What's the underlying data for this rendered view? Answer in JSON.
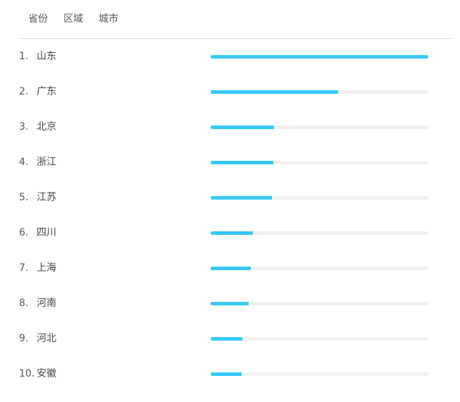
{
  "tabs": [
    {
      "label": "省份"
    },
    {
      "label": "区域"
    },
    {
      "label": "城市"
    }
  ],
  "bar_color": "#36c8f6",
  "track_color": "#efefef",
  "ranking": [
    {
      "rank": "1.",
      "name": "山东",
      "percent": 100
    },
    {
      "rank": "2.",
      "name": "广东",
      "percent": 58.6
    },
    {
      "rank": "3.",
      "name": "北京",
      "percent": 29.1
    },
    {
      "rank": "4.",
      "name": "浙江",
      "percent": 28.8
    },
    {
      "rank": "5.",
      "name": "江苏",
      "percent": 28.2
    },
    {
      "rank": "6.",
      "name": "四川",
      "percent": 19.4
    },
    {
      "rank": "7.",
      "name": "上海",
      "percent": 18.4
    },
    {
      "rank": "8.",
      "name": "河南",
      "percent": 17.5
    },
    {
      "rank": "9.",
      "name": "河北",
      "percent": 14.6
    },
    {
      "rank": "10.",
      "name": "安徽",
      "percent": 14.2
    }
  ]
}
